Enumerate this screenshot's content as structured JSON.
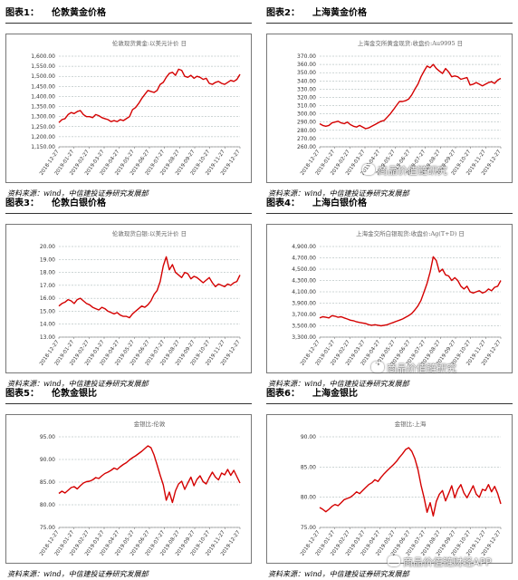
{
  "panels": [
    {
      "label": "图表1：",
      "title": "伦敦黄金价格",
      "source": "资料来源：wind，中信建投证券研究发展部",
      "chart_data": {
        "type": "line",
        "title": "伦敦现货黄金:以美元计价 日",
        "xlabel": "",
        "ylabel": "",
        "color": "#d40000",
        "ylim": [
          1150,
          1600
        ],
        "yticks": [
          "1,600.00",
          "1,550.00",
          "1,500.00",
          "1,450.00",
          "1,400.00",
          "1,350.00",
          "1,300.00",
          "1,250.00",
          "1,200.00",
          "1,150.00"
        ],
        "xticks": [
          "2018-12-27",
          "2019-01-27",
          "2019-02-27",
          "2019-03-27",
          "2019-04-27",
          "2019-05-27",
          "2019-06-27",
          "2019-07-27",
          "2019-08-27",
          "2019-09-27",
          "2019-10-27",
          "2019-11-27",
          "2019-12-27"
        ],
        "values": [
          1270,
          1285,
          1290,
          1310,
          1320,
          1315,
          1325,
          1330,
          1310,
          1300,
          1300,
          1295,
          1310,
          1305,
          1295,
          1290,
          1285,
          1275,
          1280,
          1275,
          1285,
          1280,
          1290,
          1300,
          1335,
          1345,
          1365,
          1390,
          1410,
          1430,
          1425,
          1420,
          1430,
          1460,
          1470,
          1495,
          1515,
          1520,
          1505,
          1535,
          1530,
          1500,
          1495,
          1505,
          1490,
          1500,
          1495,
          1485,
          1490,
          1465,
          1460,
          1470,
          1475,
          1465,
          1460,
          1470,
          1480,
          1475,
          1485,
          1510
        ]
      }
    },
    {
      "label": "图表2：",
      "title": "上海黄金价格",
      "source": "资料来源：wind，中信建投证券研究发展部",
      "chart_data": {
        "type": "line",
        "title": "上海金交所黄金现货:收盘价:Au9995 日",
        "xlabel": "",
        "ylabel": "",
        "color": "#d40000",
        "ylim": [
          260,
          370
        ],
        "yticks": [
          "370.00",
          "360.00",
          "350.00",
          "340.00",
          "330.00",
          "320.00",
          "310.00",
          "300.00",
          "290.00",
          "280.00",
          "270.00",
          "260.00"
        ],
        "xticks": [
          "2018-12-27",
          "2019-01-27",
          "2019-02-27",
          "2019-03-27",
          "2019-04-27",
          "2019-05-27",
          "2019-06-27",
          "2019-07-27",
          "2019-08-27",
          "2019-09-27",
          "2019-10-27",
          "2019-11-27",
          "2019-12-27"
        ],
        "values": [
          288,
          286,
          285,
          286,
          289,
          290,
          291,
          289,
          288,
          290,
          287,
          285,
          284,
          286,
          284,
          282,
          283,
          285,
          287,
          289,
          291,
          292,
          296,
          300,
          305,
          310,
          315,
          315,
          316,
          318,
          323,
          330,
          336,
          345,
          352,
          358,
          356,
          360,
          355,
          352,
          349,
          355,
          351,
          345,
          346,
          345,
          342,
          343,
          344,
          335,
          336,
          338,
          336,
          334,
          336,
          338,
          339,
          337,
          341,
          343
        ]
      }
    },
    {
      "label": "图表3：",
      "title": "伦敦白银价格",
      "source": "资料来源：wind，中信建投证券研究发展部",
      "chart_data": {
        "type": "line",
        "title": "伦敦现货白银:以美元计价 日",
        "xlabel": "",
        "ylabel": "",
        "color": "#d40000",
        "ylim": [
          13,
          20
        ],
        "yticks": [
          "20.00",
          "19.00",
          "18.00",
          "17.00",
          "16.00",
          "15.00",
          "14.00",
          "13.00"
        ],
        "xticks": [
          "2018-12-27",
          "2019-01-27",
          "2019-02-27",
          "2019-03-27",
          "2019-04-27",
          "2019-05-27",
          "2019-06-27",
          "2019-07-27",
          "2019-08-27",
          "2019-09-27",
          "2019-10-27",
          "2019-11-27",
          "2019-12-27"
        ],
        "values": [
          15.4,
          15.6,
          15.7,
          15.9,
          15.8,
          15.6,
          15.9,
          16.0,
          15.8,
          15.6,
          15.5,
          15.3,
          15.2,
          15.1,
          15.3,
          15.2,
          15.0,
          14.9,
          14.8,
          14.9,
          14.7,
          14.6,
          14.6,
          14.5,
          14.8,
          15.0,
          15.2,
          15.4,
          15.3,
          15.5,
          15.8,
          16.3,
          16.6,
          17.3,
          18.5,
          19.2,
          18.2,
          18.6,
          18.0,
          17.8,
          17.6,
          18.0,
          17.9,
          17.5,
          17.7,
          17.6,
          17.4,
          17.2,
          17.4,
          17.6,
          17.2,
          16.9,
          17.1,
          17.0,
          16.9,
          17.1,
          17.0,
          17.2,
          17.3,
          17.8
        ]
      }
    },
    {
      "label": "图表4：",
      "title": "上海白银价格",
      "source": "资料来源：wind，中信建投证券研究发展部",
      "chart_data": {
        "type": "line",
        "title": "上海金交所白银现货:收盘价:Ag(T+D) 日",
        "xlabel": "",
        "ylabel": "",
        "color": "#d40000",
        "ylim": [
          3300,
          4900
        ],
        "yticks": [
          "4,900.00",
          "4,700.00",
          "4,500.00",
          "4,300.00",
          "4,100.00",
          "3,900.00",
          "3,700.00",
          "3,500.00",
          "3,300.00"
        ],
        "xticks": [
          "2018-12-27",
          "2019-01-27",
          "2019-02-27",
          "2019-03-27",
          "2019-04-27",
          "2019-05-27",
          "2019-06-27",
          "2019-07-27",
          "2019-08-27",
          "2019-09-27",
          "2019-10-27",
          "2019-11-27",
          "2019-12-27"
        ],
        "values": [
          3640,
          3660,
          3650,
          3640,
          3680,
          3670,
          3650,
          3660,
          3640,
          3620,
          3600,
          3590,
          3570,
          3560,
          3550,
          3540,
          3520,
          3510,
          3520,
          3510,
          3500,
          3510,
          3520,
          3540,
          3560,
          3580,
          3600,
          3620,
          3650,
          3680,
          3720,
          3780,
          3850,
          3950,
          4100,
          4250,
          4450,
          4720,
          4650,
          4450,
          4500,
          4400,
          4380,
          4300,
          4350,
          4300,
          4200,
          4150,
          4200,
          4100,
          4080,
          4100,
          4120,
          4080,
          4100,
          4150,
          4120,
          4180,
          4200,
          4300
        ]
      }
    },
    {
      "label": "图表5：",
      "title": "伦敦金银比",
      "source": "资料来源：wind，中信建投证券研究发展部",
      "chart_data": {
        "type": "line",
        "title": "金银比:伦敦",
        "xlabel": "",
        "ylabel": "",
        "color": "#d40000",
        "ylim": [
          75,
          95
        ],
        "yticks": [
          "95.00",
          "90.00",
          "85.00",
          "80.00",
          "75.00"
        ],
        "xticks": [
          "2018-12-27",
          "2019-01-27",
          "2019-02-27",
          "2019-03-27",
          "2019-04-27",
          "2019-05-27",
          "2019-06-27",
          "2019-07-27",
          "2019-08-27",
          "2019-09-27",
          "2019-10-27",
          "2019-11-27",
          "2019-12-27"
        ],
        "values": [
          82.5,
          83.0,
          82.6,
          83.2,
          83.8,
          84.0,
          83.5,
          84.2,
          84.8,
          85.1,
          85.2,
          85.5,
          86.0,
          85.8,
          86.4,
          86.9,
          87.2,
          87.6,
          88.1,
          87.8,
          88.4,
          88.9,
          89.3,
          89.9,
          90.4,
          90.8,
          91.3,
          91.8,
          92.4,
          93.0,
          92.6,
          91.0,
          88.8,
          86.5,
          84.4,
          81.0,
          82.8,
          80.5,
          83.1,
          84.6,
          85.2,
          83.4,
          84.8,
          86.1,
          84.2,
          85.6,
          86.4,
          85.1,
          84.6,
          86.0,
          87.2,
          86.1,
          85.5,
          87.0,
          86.6,
          87.8,
          86.5,
          87.6,
          86.2,
          84.8
        ]
      }
    },
    {
      "label": "图表6：",
      "title": "上海金银比",
      "source": "资料来源：wind，中信建投证券研究发展部",
      "chart_data": {
        "type": "line",
        "title": "金银比:上海",
        "xlabel": "",
        "ylabel": "",
        "color": "#d40000",
        "ylim": [
          75,
          90
        ],
        "yticks": [
          "90.00",
          "85.00",
          "80.00",
          "75.00"
        ],
        "xticks": [
          "2018-12-27",
          "2019-01-27",
          "2019-02-27",
          "2019-03-27",
          "2019-04-27",
          "2019-05-27",
          "2019-06-27",
          "2019-07-27",
          "2019-08-27",
          "2019-09-27",
          "2019-10-27",
          "2019-11-27",
          "2019-12-27"
        ],
        "values": [
          78.3,
          78.0,
          77.6,
          78.0,
          78.5,
          78.8,
          78.6,
          79.1,
          79.6,
          79.8,
          80.0,
          80.4,
          80.9,
          80.6,
          81.1,
          81.6,
          82.1,
          82.4,
          82.9,
          82.6,
          83.3,
          83.9,
          84.4,
          84.9,
          85.4,
          85.9,
          86.6,
          87.2,
          87.9,
          88.2,
          87.6,
          86.4,
          84.6,
          82.0,
          79.9,
          77.5,
          79.1,
          76.9,
          79.3,
          80.5,
          81.1,
          79.4,
          80.6,
          81.9,
          79.9,
          81.3,
          82.1,
          80.7,
          79.9,
          80.9,
          81.9,
          80.5,
          80.0,
          81.3,
          81.1,
          82.1,
          80.9,
          81.8,
          80.6,
          78.9
        ]
      }
    }
  ],
  "watermarks": [
    "商品价值链研究",
    "商品价值链研究",
    "商品价值链财经APP"
  ]
}
